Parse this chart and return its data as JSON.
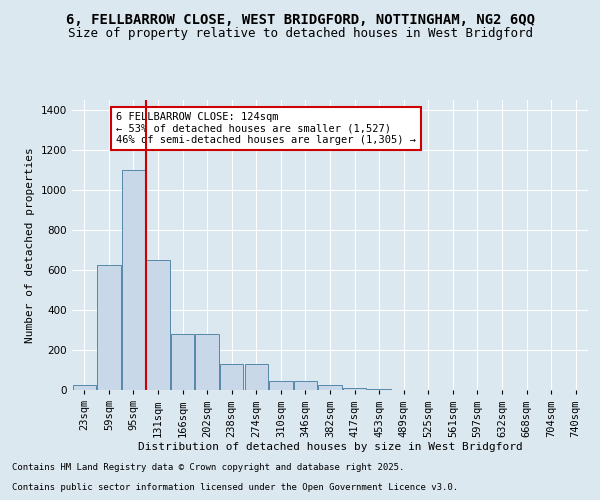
{
  "title1": "6, FELLBARROW CLOSE, WEST BRIDGFORD, NOTTINGHAM, NG2 6QQ",
  "title2": "Size of property relative to detached houses in West Bridgford",
  "xlabel": "Distribution of detached houses by size in West Bridgford",
  "ylabel": "Number of detached properties",
  "footnote1": "Contains HM Land Registry data © Crown copyright and database right 2025.",
  "footnote2": "Contains public sector information licensed under the Open Government Licence v3.0.",
  "bin_labels": [
    "23sqm",
    "59sqm",
    "95sqm",
    "131sqm",
    "166sqm",
    "202sqm",
    "238sqm",
    "274sqm",
    "310sqm",
    "346sqm",
    "382sqm",
    "417sqm",
    "453sqm",
    "489sqm",
    "525sqm",
    "561sqm",
    "597sqm",
    "632sqm",
    "668sqm",
    "704sqm",
    "740sqm"
  ],
  "bar_values": [
    25,
    625,
    1100,
    650,
    280,
    280,
    130,
    130,
    45,
    45,
    25,
    10,
    5,
    0,
    0,
    0,
    0,
    0,
    0,
    0,
    0
  ],
  "bar_color": "#c8d8e8",
  "bar_edge_color": "#5588aa",
  "background_color": "#dce8f0",
  "grid_color": "#ffffff",
  "vline_x_index": 2.5,
  "vline_color": "#cc0000",
  "annotation_text": "6 FELLBARROW CLOSE: 124sqm\n← 53% of detached houses are smaller (1,527)\n46% of semi-detached houses are larger (1,305) →",
  "annotation_box_color": "#ffffff",
  "annotation_box_edge": "#cc0000",
  "ylim": [
    0,
    1450
  ],
  "yticks": [
    0,
    200,
    400,
    600,
    800,
    1000,
    1200,
    1400
  ],
  "title_fontsize": 10,
  "subtitle_fontsize": 9,
  "axis_fontsize": 8,
  "tick_fontsize": 7.5,
  "annot_fontsize": 7.5
}
